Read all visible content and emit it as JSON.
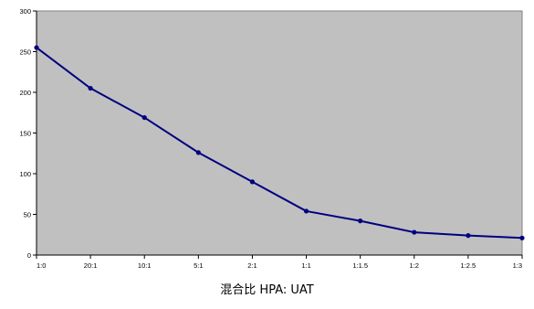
{
  "chart_data": {
    "type": "line",
    "xlabel": "混合比 HPA: UAT",
    "ylabel": "",
    "ylim": [
      0,
      300
    ],
    "y_ticks": [
      0,
      50,
      100,
      150,
      200,
      250,
      300
    ],
    "categories": [
      "1:0",
      "20:1",
      "10:1",
      "5:1",
      "2:1",
      "1:1",
      "1:1.5",
      "1:2",
      "1:2.5",
      "1:3"
    ],
    "series": [
      {
        "values": [
          255,
          205,
          169,
          126,
          90,
          54,
          42,
          28,
          24,
          21
        ]
      }
    ],
    "grid": true,
    "colors": {
      "plot_background": "#c0c0c0",
      "gridline": "#000000",
      "line": "#000080"
    }
  }
}
